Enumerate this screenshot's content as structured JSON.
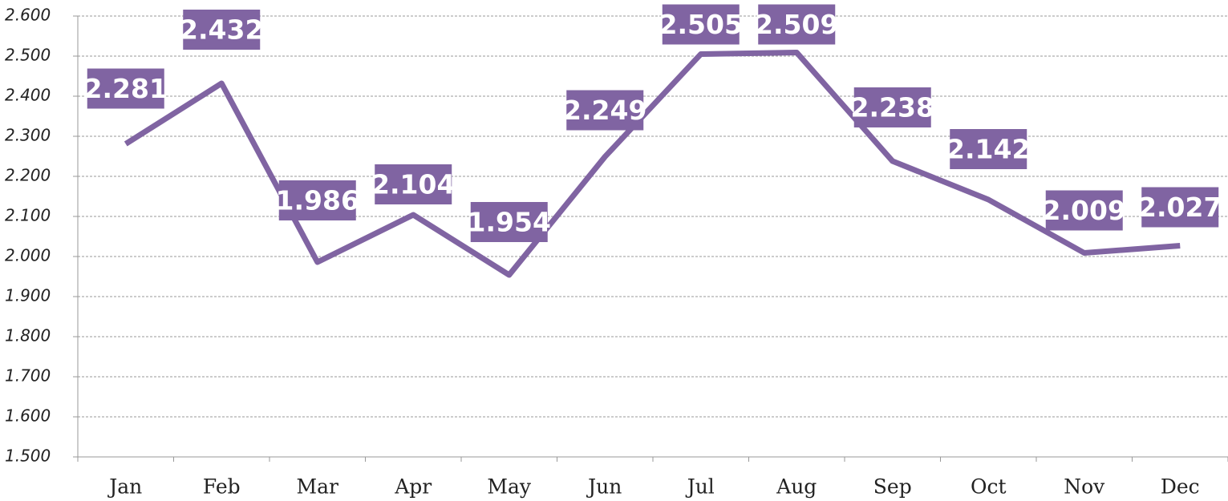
{
  "chart_data": {
    "type": "line",
    "categories": [
      "Jan",
      "Feb",
      "Mar",
      "Apr",
      "May",
      "Jun",
      "Jul",
      "Aug",
      "Sep",
      "Oct",
      "Nov",
      "Dec"
    ],
    "series": [
      {
        "name": null,
        "color": "#8064a2",
        "values": [
          2.281,
          2.432,
          1.986,
          2.104,
          1.954,
          2.249,
          2.505,
          2.509,
          2.238,
          2.142,
          2.009,
          2.027
        ]
      }
    ],
    "ylim": [
      1.5,
      2.6
    ],
    "yticks": [
      {
        "value": 1.5,
        "label": "1.500"
      },
      {
        "value": 1.6,
        "label": "1.600"
      },
      {
        "value": 1.7,
        "label": "1.700"
      },
      {
        "value": 1.8,
        "label": "1.800"
      },
      {
        "value": 1.9,
        "label": "1.900"
      },
      {
        "value": 2.0,
        "label": "2.000"
      },
      {
        "value": 2.1,
        "label": "2.100"
      },
      {
        "value": 2.2,
        "label": "2.200"
      },
      {
        "value": 2.3,
        "label": "2.300"
      },
      {
        "value": 2.4,
        "label": "2.400"
      },
      {
        "value": 2.5,
        "label": "2.500"
      },
      {
        "value": 2.6,
        "label": "2.600"
      }
    ],
    "grid": true
  }
}
